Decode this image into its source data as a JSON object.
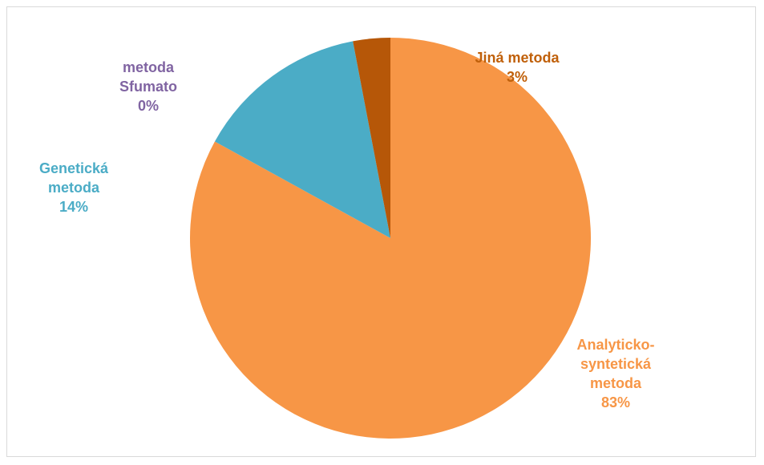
{
  "chart_data": {
    "type": "pie",
    "categories": [
      "Analyticko-syntetická metoda",
      "Genetická metoda",
      "metoda Sfumato",
      "Jiná metoda"
    ],
    "values": [
      83,
      14,
      0,
      3
    ],
    "value_labels": [
      "83%",
      "14%",
      "0%",
      "3%"
    ],
    "colors": [
      "#f79646",
      "#4bacc6",
      "#8064a2",
      "#b65708"
    ]
  }
}
